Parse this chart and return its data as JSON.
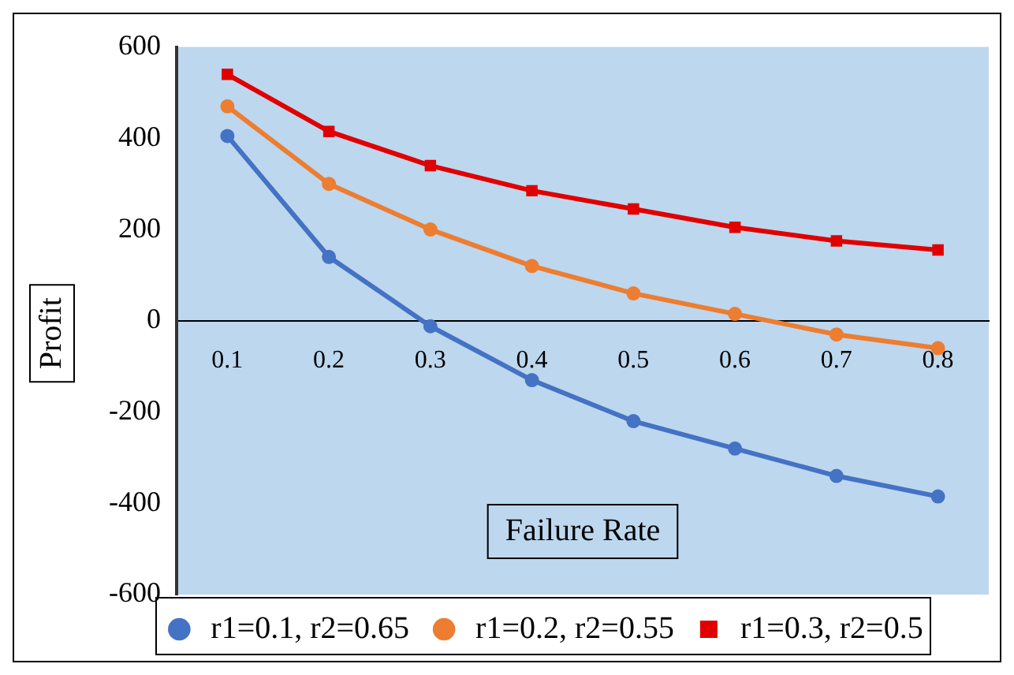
{
  "chart_data": {
    "type": "line",
    "xlabel": "Failure Rate",
    "ylabel": "Profit",
    "categories": [
      "0.1",
      "0.2",
      "0.3",
      "0.4",
      "0.5",
      "0.6",
      "0.7",
      "0.8"
    ],
    "series": [
      {
        "name": "r1=0.1, r2=0.65",
        "color": "#4472c4",
        "marker": "circle",
        "values": [
          405,
          140,
          -12,
          -130,
          -220,
          -280,
          -340,
          -385
        ]
      },
      {
        "name": "r1=0.2, r2=0.55",
        "color": "#ed7d31",
        "marker": "circle",
        "values": [
          470,
          300,
          200,
          120,
          60,
          15,
          -30,
          -60
        ]
      },
      {
        "name": "r1=0.3, r2=0.5",
        "color": "#e00000",
        "marker": "square",
        "values": [
          540,
          415,
          340,
          285,
          245,
          205,
          175,
          155
        ]
      }
    ],
    "ylim": [
      -600,
      600
    ],
    "yticks": [
      -600,
      -400,
      -200,
      0,
      200,
      400,
      600
    ],
    "grid": false,
    "legend": "bottom"
  }
}
